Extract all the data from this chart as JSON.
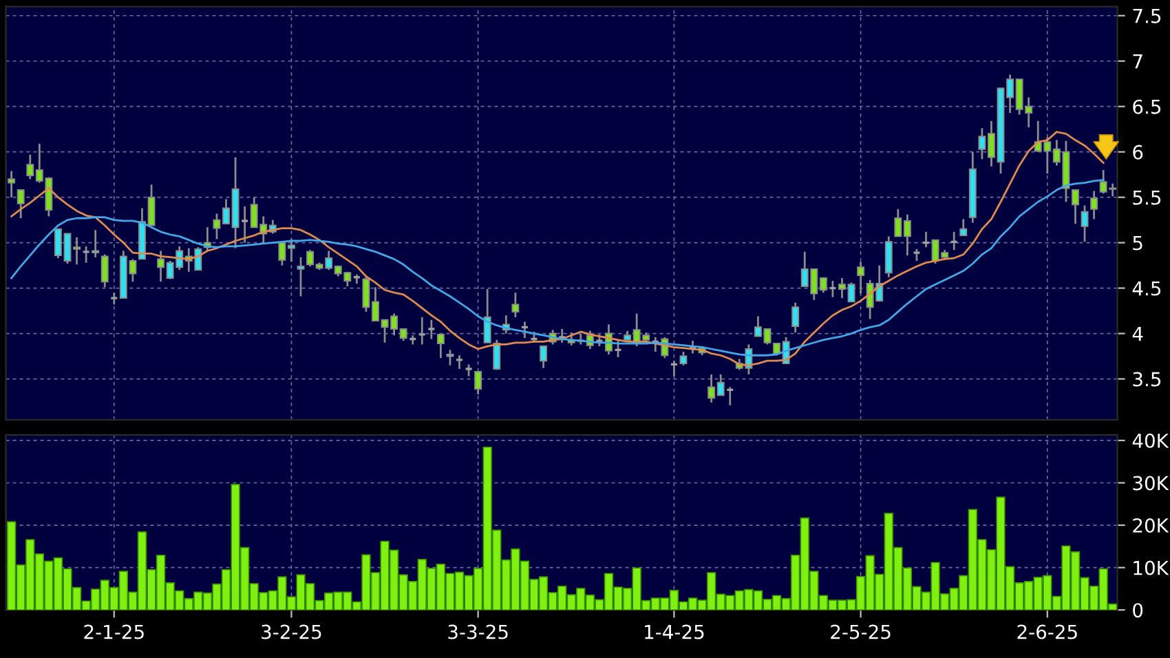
{
  "chart_data": [
    {
      "type": "candlestick",
      "tick_labels": "y",
      "grid": true,
      "legend": false,
      "categories": [
        null,
        null,
        null,
        null,
        null,
        null,
        null,
        null,
        null,
        null,
        null,
        null,
        null,
        null,
        null,
        null,
        null,
        null,
        null,
        null,
        null,
        null,
        null,
        null,
        null,
        null,
        null,
        null,
        null,
        null,
        null,
        null,
        null,
        null,
        null,
        null,
        null,
        null,
        null,
        null,
        null,
        null,
        null,
        null,
        null,
        null,
        null,
        null,
        null,
        null,
        null,
        null,
        null,
        null,
        null,
        null,
        null,
        null,
        null,
        null,
        null,
        null,
        null,
        null,
        null,
        null,
        null,
        null,
        null,
        null,
        null,
        null,
        null,
        null,
        null,
        null,
        null,
        null,
        null,
        null,
        null,
        null,
        null,
        null,
        null,
        null,
        null,
        null,
        null,
        null,
        null,
        null,
        null,
        null,
        null,
        null,
        null,
        null,
        null,
        null,
        null,
        null,
        null,
        null,
        null,
        null,
        null,
        null,
        null,
        null,
        null,
        null,
        null,
        null,
        null,
        null,
        null,
        null,
        null
      ],
      "ylim": [
        3.05,
        7.6
      ],
      "yticks": [
        3.5,
        4,
        4.5,
        5,
        5.5,
        6,
        6.5,
        7,
        7.5
      ],
      "series": [
        {
          "type": "candlestick",
          "ohlc": [
            [
              5.7,
              5.79,
              5.5,
              5.66
            ],
            [
              5.58,
              5.58,
              5.27,
              5.43
            ],
            [
              5.86,
              5.97,
              5.7,
              5.74
            ],
            [
              5.8,
              6.09,
              5.66,
              5.68
            ],
            [
              5.71,
              5.72,
              5.29,
              5.36
            ],
            [
              4.86,
              5.15,
              4.83,
              5.15
            ],
            [
              4.8,
              5.1,
              4.77,
              5.1
            ],
            [
              4.95,
              5.06,
              4.76,
              4.93
            ],
            [
              4.9,
              4.96,
              4.78,
              4.9
            ],
            [
              4.89,
              5.14,
              4.84,
              4.91
            ],
            [
              4.85,
              4.87,
              4.51,
              4.57
            ],
            [
              4.39,
              4.45,
              4.32,
              4.39
            ],
            [
              4.39,
              4.91,
              4.39,
              4.85
            ],
            [
              4.8,
              4.82,
              4.57,
              4.66
            ],
            [
              4.82,
              5.38,
              4.82,
              5.23
            ],
            [
              5.5,
              5.64,
              5.19,
              5.19
            ],
            [
              4.82,
              4.91,
              4.57,
              4.73
            ],
            [
              4.61,
              4.8,
              4.6,
              4.78
            ],
            [
              4.73,
              4.96,
              4.7,
              4.91
            ],
            [
              4.85,
              4.94,
              4.68,
              4.8
            ],
            [
              4.7,
              4.95,
              4.7,
              4.93
            ],
            [
              5.0,
              5.17,
              4.91,
              4.95
            ],
            [
              5.25,
              5.32,
              5.04,
              5.16
            ],
            [
              5.21,
              5.48,
              5.21,
              5.38
            ],
            [
              5.17,
              5.94,
              4.94,
              5.59
            ],
            [
              5.24,
              5.4,
              5.0,
              5.24
            ],
            [
              5.42,
              5.5,
              5.17,
              5.17
            ],
            [
              5.2,
              5.29,
              4.99,
              5.1
            ],
            [
              5.12,
              5.25,
              5.1,
              5.19
            ],
            [
              5.0,
              5.0,
              4.75,
              4.81
            ],
            [
              4.94,
              5.04,
              4.79,
              4.97
            ],
            [
              4.71,
              4.84,
              4.41,
              4.74
            ],
            [
              4.9,
              4.92,
              4.74,
              4.76
            ],
            [
              4.76,
              4.78,
              4.7,
              4.72
            ],
            [
              4.72,
              4.91,
              4.7,
              4.83
            ],
            [
              4.74,
              4.75,
              4.63,
              4.66
            ],
            [
              4.67,
              4.68,
              4.52,
              4.58
            ],
            [
              4.62,
              4.65,
              4.55,
              4.62
            ],
            [
              4.6,
              4.62,
              4.24,
              4.29
            ],
            [
              4.35,
              4.51,
              4.14,
              4.14
            ],
            [
              4.15,
              4.15,
              3.9,
              4.07
            ],
            [
              4.19,
              4.22,
              3.98,
              4.05
            ],
            [
              4.05,
              4.05,
              3.92,
              3.95
            ],
            [
              3.94,
              3.98,
              3.88,
              3.94
            ],
            [
              3.99,
              4.18,
              3.88,
              3.99
            ],
            [
              4.05,
              4.15,
              3.94,
              4.05
            ],
            [
              3.99,
              3.99,
              3.73,
              3.89
            ],
            [
              3.75,
              3.82,
              3.65,
              3.77
            ],
            [
              3.71,
              3.76,
              3.61,
              3.71
            ],
            [
              3.61,
              3.66,
              3.53,
              3.61
            ],
            [
              3.58,
              3.58,
              3.33,
              3.39
            ],
            [
              3.9,
              4.49,
              3.9,
              4.18
            ],
            [
              3.61,
              3.93,
              3.6,
              3.89
            ],
            [
              4.04,
              4.2,
              4.0,
              4.1
            ],
            [
              4.32,
              4.45,
              4.18,
              4.24
            ],
            [
              4.07,
              4.13,
              3.95,
              4.07
            ],
            [
              3.94,
              4.02,
              3.9,
              3.94
            ],
            [
              3.7,
              3.86,
              3.62,
              3.86
            ],
            [
              4.0,
              4.04,
              3.88,
              3.91
            ],
            [
              3.96,
              4.05,
              3.9,
              3.96
            ],
            [
              3.93,
              4.01,
              3.87,
              3.9
            ],
            [
              3.92,
              4.0,
              3.88,
              3.92
            ],
            [
              3.98,
              4.03,
              3.83,
              3.87
            ],
            [
              3.92,
              3.99,
              3.86,
              3.92
            ],
            [
              4.0,
              4.1,
              3.77,
              3.81
            ],
            [
              3.82,
              3.92,
              3.74,
              3.82
            ],
            [
              3.93,
              4.03,
              3.91,
              3.98
            ],
            [
              4.04,
              4.22,
              3.86,
              3.89
            ],
            [
              3.98,
              4.01,
              3.9,
              3.93
            ],
            [
              3.91,
              3.96,
              3.8,
              3.91
            ],
            [
              3.94,
              3.96,
              3.73,
              3.76
            ],
            [
              3.66,
              3.7,
              3.53,
              3.66
            ],
            [
              3.67,
              3.8,
              3.65,
              3.75
            ],
            [
              3.84,
              3.92,
              3.78,
              3.84
            ],
            [
              3.84,
              3.86,
              3.76,
              3.79
            ],
            [
              3.41,
              3.55,
              3.24,
              3.29
            ],
            [
              3.32,
              3.55,
              3.32,
              3.46
            ],
            [
              3.38,
              3.41,
              3.21,
              3.38
            ],
            [
              3.67,
              3.72,
              3.6,
              3.62
            ],
            [
              3.62,
              3.88,
              3.55,
              3.83
            ],
            [
              3.97,
              4.19,
              3.97,
              4.07
            ],
            [
              4.05,
              4.05,
              3.88,
              3.9
            ],
            [
              3.89,
              3.89,
              3.76,
              3.78
            ],
            [
              3.67,
              3.96,
              3.67,
              3.91
            ],
            [
              4.08,
              4.34,
              4.01,
              4.29
            ],
            [
              4.52,
              4.9,
              4.52,
              4.71
            ],
            [
              4.71,
              4.71,
              4.37,
              4.44
            ],
            [
              4.61,
              4.62,
              4.45,
              4.48
            ],
            [
              4.5,
              4.58,
              4.4,
              4.5
            ],
            [
              4.54,
              4.61,
              4.39,
              4.49
            ],
            [
              4.35,
              4.56,
              4.35,
              4.54
            ],
            [
              4.73,
              4.79,
              4.44,
              4.64
            ],
            [
              4.55,
              4.59,
              4.16,
              4.29
            ],
            [
              4.36,
              4.75,
              4.35,
              4.55
            ],
            [
              4.67,
              5.07,
              4.62,
              5.01
            ],
            [
              5.27,
              5.37,
              5.07,
              5.07
            ],
            [
              5.24,
              5.31,
              4.86,
              5.07
            ],
            [
              4.89,
              4.93,
              4.8,
              4.89
            ],
            [
              5.0,
              5.12,
              4.95,
              5.0
            ],
            [
              5.03,
              5.03,
              4.77,
              4.8
            ],
            [
              4.89,
              4.92,
              4.81,
              4.84
            ],
            [
              5.01,
              5.12,
              4.92,
              5.01
            ],
            [
              5.08,
              5.26,
              5.08,
              5.15
            ],
            [
              5.28,
              6.0,
              5.22,
              5.81
            ],
            [
              6.03,
              6.26,
              5.92,
              6.17
            ],
            [
              6.2,
              6.34,
              5.84,
              5.94
            ],
            [
              5.89,
              6.7,
              5.76,
              6.7
            ],
            [
              6.6,
              6.85,
              6.43,
              6.8
            ],
            [
              6.8,
              6.8,
              6.41,
              6.47
            ],
            [
              6.5,
              6.6,
              6.27,
              6.43
            ],
            [
              6.11,
              6.34,
              6.0,
              6.01
            ],
            [
              6.11,
              6.16,
              5.76,
              6.01
            ],
            [
              6.03,
              6.13,
              5.85,
              5.89
            ],
            [
              6.0,
              6.12,
              5.45,
              5.6
            ],
            [
              5.58,
              5.58,
              5.21,
              5.42
            ],
            [
              5.18,
              5.41,
              5.01,
              5.34
            ],
            [
              5.49,
              5.57,
              5.26,
              5.37
            ],
            [
              5.67,
              5.8,
              5.54,
              5.56
            ],
            [
              5.6,
              5.65,
              5.51,
              5.59
            ]
          ],
          "colors": [
            "#7fe020",
            "#7fe020",
            "#7fe020",
            "#7fe020",
            "#7fe020",
            "#30e0f0",
            "#30e0f0",
            "#7fe020",
            "#a0a0a0",
            "#30e0f0",
            "#7fe020",
            "#a0a0a0",
            "#30e0f0",
            "#7fe020",
            "#30e0f0",
            "#7fe020",
            "#7fe020",
            "#30e0f0",
            "#30e0f0",
            "#7fe020",
            "#30e0f0",
            "#7fe020",
            "#7fe020",
            "#30e0f0",
            "#30e0f0",
            "#a0a0a0",
            "#7fe020",
            "#7fe020",
            "#30e0f0",
            "#7fe020",
            "#30e0f0",
            "#30e0f0",
            "#7fe020",
            "#7fe020",
            "#30e0f0",
            "#7fe020",
            "#7fe020",
            "#a0a0a0",
            "#7fe020",
            "#7fe020",
            "#7fe020",
            "#7fe020",
            "#7fe020",
            "#a0a0a0",
            "#a0a0a0",
            "#a0a0a0",
            "#7fe020",
            "#30e0f0",
            "#a0a0a0",
            "#a0a0a0",
            "#7fe020",
            "#30e0f0",
            "#30e0f0",
            "#30e0f0",
            "#7fe020",
            "#a0a0a0",
            "#a0a0a0",
            "#30e0f0",
            "#7fe020",
            "#a0a0a0",
            "#7fe020",
            "#a0a0a0",
            "#7fe020",
            "#a0a0a0",
            "#7fe020",
            "#a0a0a0",
            "#30e0f0",
            "#7fe020",
            "#7fe020",
            "#a0a0a0",
            "#7fe020",
            "#a0a0a0",
            "#30e0f0",
            "#a0a0a0",
            "#7fe020",
            "#7fe020",
            "#30e0f0",
            "#a0a0a0",
            "#7fe020",
            "#30e0f0",
            "#30e0f0",
            "#7fe020",
            "#7fe020",
            "#30e0f0",
            "#30e0f0",
            "#30e0f0",
            "#7fe020",
            "#7fe020",
            "#a0a0a0",
            "#7fe020",
            "#30e0f0",
            "#7fe020",
            "#7fe020",
            "#30e0f0",
            "#30e0f0",
            "#7fe020",
            "#7fe020",
            "#a0a0a0",
            "#a0a0a0",
            "#7fe020",
            "#7fe020",
            "#a0a0a0",
            "#30e0f0",
            "#30e0f0",
            "#30e0f0",
            "#7fe020",
            "#30e0f0",
            "#30e0f0",
            "#7fe020",
            "#7fe020",
            "#7fe020",
            "#7fe020",
            "#7fe020",
            "#7fe020",
            "#7fe020",
            "#30e0f0",
            "#7fe020",
            "#7fe020",
            "#a0a0a0"
          ]
        },
        {
          "type": "line",
          "color": "#e08a50",
          "line_style": "solid",
          "values": [
            5.29,
            5.37,
            5.44,
            5.52,
            5.6,
            5.5,
            5.42,
            5.35,
            5.3,
            5.28,
            5.19,
            5.09,
            5.0,
            4.89,
            4.88,
            4.88,
            4.85,
            4.84,
            4.83,
            4.82,
            4.85,
            4.91,
            4.94,
            4.98,
            5.02,
            5.05,
            5.08,
            5.12,
            5.14,
            5.16,
            5.16,
            5.14,
            5.09,
            5.03,
            4.95,
            4.88,
            4.81,
            4.74,
            4.63,
            4.56,
            4.48,
            4.45,
            4.43,
            4.36,
            4.28,
            4.2,
            4.13,
            4.03,
            3.95,
            3.88,
            3.83,
            3.86,
            3.88,
            3.88,
            3.9,
            3.9,
            3.91,
            3.91,
            3.93,
            3.94,
            3.98,
            4.02,
            3.99,
            3.97,
            3.95,
            3.93,
            3.91,
            3.91,
            3.91,
            3.89,
            3.87,
            3.85,
            3.84,
            3.83,
            3.82,
            3.78,
            3.76,
            3.72,
            3.66,
            3.65,
            3.67,
            3.7,
            3.7,
            3.71,
            3.78,
            3.91,
            4.01,
            4.11,
            4.2,
            4.26,
            4.3,
            4.36,
            4.44,
            4.52,
            4.58,
            4.64,
            4.69,
            4.74,
            4.78,
            4.8,
            4.82,
            4.83,
            4.87,
            4.99,
            5.15,
            5.26,
            5.45,
            5.65,
            5.85,
            6.01,
            6.11,
            6.13,
            6.22,
            6.2,
            6.13,
            6.07,
            5.98,
            5.88,
            null
          ]
        },
        {
          "type": "line",
          "color": "#40a8e8",
          "line_style": "solid",
          "values": [
            4.61,
            4.74,
            4.86,
            4.98,
            5.09,
            5.19,
            5.25,
            5.27,
            5.27,
            5.28,
            5.28,
            5.25,
            5.24,
            5.24,
            5.22,
            5.17,
            5.12,
            5.09,
            5.07,
            5.03,
            4.99,
            4.96,
            4.95,
            4.96,
            4.96,
            4.97,
            4.98,
            4.99,
            5.0,
            5.01,
            5.02,
            5.02,
            5.03,
            5.02,
            5.01,
            4.99,
            4.98,
            4.96,
            4.93,
            4.9,
            4.86,
            4.82,
            4.76,
            4.68,
            4.61,
            4.53,
            4.47,
            4.41,
            4.34,
            4.27,
            4.19,
            4.13,
            4.09,
            4.06,
            4.04,
            4.02,
            4.0,
            3.98,
            3.96,
            3.94,
            3.93,
            3.92,
            3.91,
            3.9,
            3.9,
            3.89,
            3.89,
            3.89,
            3.89,
            3.9,
            3.89,
            3.88,
            3.87,
            3.86,
            3.85,
            3.83,
            3.81,
            3.79,
            3.77,
            3.76,
            3.76,
            3.76,
            3.77,
            3.81,
            3.84,
            3.87,
            3.9,
            3.93,
            3.95,
            3.97,
            4.0,
            4.04,
            4.07,
            4.09,
            4.15,
            4.24,
            4.33,
            4.41,
            4.49,
            4.54,
            4.59,
            4.64,
            4.69,
            4.77,
            4.87,
            4.94,
            5.07,
            5.17,
            5.29,
            5.37,
            5.45,
            5.51,
            5.58,
            5.63,
            5.65,
            5.66,
            5.68,
            5.69,
            null
          ]
        }
      ]
    },
    {
      "type": "bar",
      "grid": true,
      "legend": false,
      "categories": [
        null,
        null,
        null,
        null,
        null,
        null,
        null,
        null,
        null,
        null,
        null,
        "2-1-25",
        null,
        null,
        null,
        null,
        null,
        null,
        null,
        null,
        null,
        null,
        null,
        null,
        null,
        null,
        null,
        null,
        null,
        null,
        "3-2-25",
        null,
        null,
        null,
        null,
        null,
        null,
        null,
        null,
        null,
        null,
        null,
        null,
        null,
        null,
        null,
        null,
        null,
        null,
        null,
        "3-3-25",
        null,
        null,
        null,
        null,
        null,
        null,
        null,
        null,
        null,
        null,
        null,
        null,
        null,
        null,
        null,
        null,
        null,
        null,
        null,
        null,
        "1-4-25",
        null,
        null,
        null,
        null,
        null,
        null,
        null,
        null,
        null,
        null,
        null,
        null,
        null,
        null,
        null,
        null,
        null,
        null,
        null,
        "2-5-25",
        null,
        null,
        null,
        null,
        null,
        null,
        null,
        null,
        null,
        null,
        null,
        null,
        null,
        null,
        null,
        null,
        null,
        null,
        null,
        "2-6-25",
        null,
        null,
        null,
        null,
        null,
        null,
        null
      ],
      "ylim": [
        0,
        41300
      ],
      "yticks": [
        0,
        {
          "value": 10000,
          "label": "10K"
        },
        {
          "value": 20000,
          "label": "20K"
        },
        {
          "value": 30000,
          "label": "30K"
        },
        {
          "value": 40000,
          "label": "40K"
        }
      ],
      "series": [
        {
          "color": "#80f010",
          "values": [
            20800,
            10600,
            16600,
            13200,
            11500,
            12300,
            9700,
            5300,
            2100,
            4900,
            7000,
            5300,
            9100,
            4200,
            18400,
            9500,
            12900,
            6400,
            4500,
            2700,
            4200,
            4000,
            6100,
            9500,
            29600,
            14700,
            6200,
            4100,
            4500,
            7800,
            3100,
            8300,
            6200,
            2200,
            4000,
            4200,
            4200,
            1900,
            13000,
            8800,
            16200,
            14100,
            8300,
            6700,
            11900,
            9800,
            10800,
            8600,
            8900,
            8100,
            9800,
            38400,
            18800,
            11800,
            14400,
            11500,
            7200,
            7800,
            4100,
            5600,
            3600,
            5100,
            3500,
            2400,
            8600,
            5400,
            5100,
            9900,
            2200,
            2800,
            2800,
            4600,
            1900,
            2800,
            2300,
            8800,
            3700,
            3400,
            4500,
            4800,
            4500,
            2500,
            3400,
            2700,
            12900,
            21700,
            9100,
            3400,
            2300,
            2300,
            2400,
            7900,
            12800,
            8400,
            22800,
            14700,
            9900,
            5500,
            4200,
            11200,
            3800,
            5100,
            8100,
            23700,
            16600,
            14200,
            26600,
            10200,
            6400,
            6700,
            7700,
            8100,
            3200,
            15100,
            13700,
            7600,
            5600,
            9700,
            1400
          ]
        }
      ]
    }
  ]
}
